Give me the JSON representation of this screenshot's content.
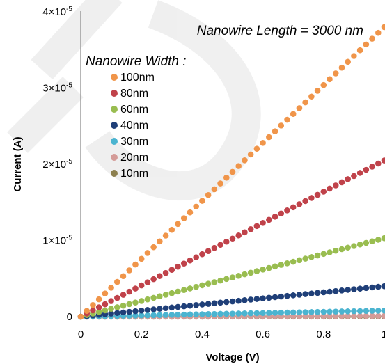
{
  "chart_data": {
    "type": "scatter",
    "title": "",
    "annotation": "Nanowire Length = 3000 nm",
    "legend_title": "Nanowire Width :",
    "legend_position": "top-left",
    "xlabel": "Voltage (V)",
    "ylabel": "Current (A)",
    "xlim": [
      0,
      1
    ],
    "ylim": [
      0,
      4e-05
    ],
    "x_ticks": [
      0,
      0.2,
      0.4,
      0.6,
      0.8,
      1
    ],
    "x_tick_labels": [
      "0",
      "0.2",
      "0.4",
      "0.6",
      "0.8",
      "1"
    ],
    "y_ticks": [
      0,
      1e-05,
      2e-05,
      3e-05,
      4e-05
    ],
    "y_tick_labels": [
      {
        "mantissa": "0",
        "exponent": ""
      },
      {
        "mantissa": "1×10",
        "exponent": "-5"
      },
      {
        "mantissa": "2×10",
        "exponent": "-5"
      },
      {
        "mantissa": "3×10",
        "exponent": "-5"
      },
      {
        "mantissa": "4×10",
        "exponent": "-5"
      }
    ],
    "grid": false,
    "x": [
      0,
      0.02,
      0.04,
      0.06,
      0.08,
      0.1,
      0.12,
      0.14,
      0.16,
      0.18,
      0.2,
      0.22,
      0.24,
      0.26,
      0.28,
      0.3,
      0.32,
      0.34,
      0.36,
      0.38,
      0.4,
      0.42,
      0.44,
      0.46,
      0.48,
      0.5,
      0.52,
      0.54,
      0.56,
      0.58,
      0.6,
      0.62,
      0.64,
      0.66,
      0.68,
      0.7,
      0.72,
      0.74,
      0.76,
      0.78,
      0.8,
      0.82,
      0.84,
      0.86,
      0.88,
      0.9,
      0.92,
      0.94,
      0.96,
      0.98,
      1
    ],
    "series": [
      {
        "name": "100nm",
        "color": "#f0954a",
        "values": [
          0,
          7.6e-07,
          1.52e-06,
          2.28e-06,
          3.04e-06,
          3.8e-06,
          4.56e-06,
          5.32e-06,
          6.08e-06,
          6.84e-06,
          7.6e-06,
          8.36e-06,
          9.12e-06,
          9.88e-06,
          1.064e-05,
          1.14e-05,
          1.216e-05,
          1.292e-05,
          1.368e-05,
          1.444e-05,
          1.52e-05,
          1.596e-05,
          1.672e-05,
          1.748e-05,
          1.824e-05,
          1.9e-05,
          1.976e-05,
          2.052e-05,
          2.128e-05,
          2.204e-05,
          2.28e-05,
          2.356e-05,
          2.432e-05,
          2.508e-05,
          2.584e-05,
          2.66e-05,
          2.736e-05,
          2.812e-05,
          2.888e-05,
          2.964e-05,
          3.04e-05,
          3.116e-05,
          3.192e-05,
          3.268e-05,
          3.344e-05,
          3.42e-05,
          3.496e-05,
          3.572e-05,
          3.648e-05,
          3.724e-05,
          3.8e-05
        ]
      },
      {
        "name": "80nm",
        "color": "#c0424a",
        "values": [
          0,
          4.1e-07,
          8.2e-07,
          1.23e-06,
          1.64e-06,
          2.05e-06,
          2.46e-06,
          2.87e-06,
          3.28e-06,
          3.69e-06,
          4.1e-06,
          4.51e-06,
          4.92e-06,
          5.33e-06,
          5.74e-06,
          6.15e-06,
          6.56e-06,
          6.97e-06,
          7.38e-06,
          7.79e-06,
          8.2e-06,
          8.61e-06,
          9.02e-06,
          9.43e-06,
          9.84e-06,
          1.025e-05,
          1.066e-05,
          1.107e-05,
          1.148e-05,
          1.189e-05,
          1.23e-05,
          1.271e-05,
          1.312e-05,
          1.353e-05,
          1.394e-05,
          1.435e-05,
          1.476e-05,
          1.517e-05,
          1.558e-05,
          1.599e-05,
          1.64e-05,
          1.681e-05,
          1.722e-05,
          1.763e-05,
          1.804e-05,
          1.845e-05,
          1.886e-05,
          1.927e-05,
          1.968e-05,
          2.009e-05,
          2.05e-05
        ]
      },
      {
        "name": "60nm",
        "color": "#99bd50",
        "values": [
          0,
          2.06e-07,
          4.12e-07,
          6.18e-07,
          8.24e-07,
          1.03e-06,
          1.236e-06,
          1.442e-06,
          1.648e-06,
          1.854e-06,
          2.06e-06,
          2.266e-06,
          2.472e-06,
          2.678e-06,
          2.884e-06,
          3.09e-06,
          3.296e-06,
          3.502e-06,
          3.708e-06,
          3.914e-06,
          4.12e-06,
          4.326e-06,
          4.532e-06,
          4.738e-06,
          4.944e-06,
          5.15e-06,
          5.356e-06,
          5.562e-06,
          5.768e-06,
          5.974e-06,
          6.18e-06,
          6.386e-06,
          6.592e-06,
          6.798e-06,
          7.004e-06,
          7.21e-06,
          7.416e-06,
          7.622e-06,
          7.828e-06,
          8.034e-06,
          8.24e-06,
          8.446e-06,
          8.652e-06,
          8.858e-06,
          9.064e-06,
          9.27e-06,
          9.476e-06,
          9.682e-06,
          9.888e-06,
          1.0094e-05,
          1.03e-05
        ]
      },
      {
        "name": "40nm",
        "color": "#1f3f78",
        "values": [
          0,
          8e-08,
          1.6e-07,
          2.4e-07,
          3.2e-07,
          4e-07,
          4.8e-07,
          5.6e-07,
          6.4e-07,
          7.2e-07,
          8e-07,
          8.8e-07,
          9.6e-07,
          1.04e-06,
          1.12e-06,
          1.2e-06,
          1.28e-06,
          1.36e-06,
          1.44e-06,
          1.52e-06,
          1.6e-06,
          1.68e-06,
          1.76e-06,
          1.84e-06,
          1.92e-06,
          2e-06,
          2.08e-06,
          2.16e-06,
          2.24e-06,
          2.32e-06,
          2.4e-06,
          2.48e-06,
          2.56e-06,
          2.64e-06,
          2.72e-06,
          2.8e-06,
          2.88e-06,
          2.96e-06,
          3.04e-06,
          3.12e-06,
          3.2e-06,
          3.28e-06,
          3.36e-06,
          3.44e-06,
          3.52e-06,
          3.6e-06,
          3.68e-06,
          3.76e-06,
          3.84e-06,
          3.92e-06,
          4e-06
        ]
      },
      {
        "name": "30nm",
        "color": "#4bb4d0",
        "values": [
          0,
          1.6e-08,
          3.2e-08,
          4.8e-08,
          6.4e-08,
          8e-08,
          9.6e-08,
          1.12e-07,
          1.28e-07,
          1.44e-07,
          1.6e-07,
          1.76e-07,
          1.92e-07,
          2.08e-07,
          2.24e-07,
          2.4e-07,
          2.56e-07,
          2.72e-07,
          2.88e-07,
          3.04e-07,
          3.2e-07,
          3.36e-07,
          3.52e-07,
          3.68e-07,
          3.84e-07,
          4e-07,
          4.16e-07,
          4.32e-07,
          4.48e-07,
          4.64e-07,
          4.8e-07,
          4.96e-07,
          5.12e-07,
          5.28e-07,
          5.44e-07,
          5.6e-07,
          5.76e-07,
          5.92e-07,
          6.08e-07,
          6.24e-07,
          6.4e-07,
          6.56e-07,
          6.72e-07,
          6.88e-07,
          7.04e-07,
          7.2e-07,
          7.36e-07,
          7.52e-07,
          7.68e-07,
          7.84e-07,
          8e-07
        ]
      },
      {
        "name": "20nm",
        "color": "#d49b98",
        "values": [
          0,
          2e-09,
          4e-09,
          6e-09,
          8e-09,
          1e-08,
          1.2e-08,
          1.4e-08,
          1.6e-08,
          1.8e-08,
          2e-08,
          2.2e-08,
          2.4e-08,
          2.6e-08,
          2.8e-08,
          3e-08,
          3.2e-08,
          3.4e-08,
          3.6e-08,
          3.8e-08,
          4e-08,
          4.2e-08,
          4.4e-08,
          4.6e-08,
          4.8e-08,
          5e-08,
          5.2e-08,
          5.4e-08,
          5.6e-08,
          5.8e-08,
          6e-08,
          6.2e-08,
          6.4e-08,
          6.6e-08,
          6.8e-08,
          7e-08,
          7.2e-08,
          7.4e-08,
          7.6e-08,
          7.8e-08,
          8e-08,
          8.2e-08,
          8.4e-08,
          8.6e-08,
          8.8e-08,
          9e-08,
          9.2e-08,
          9.4e-08,
          9.6e-08,
          9.8e-08,
          1e-07
        ]
      },
      {
        "name": "10nm",
        "color": "#8c7f4e",
        "values": [
          0,
          0,
          1e-09,
          1e-09,
          2e-09,
          2e-09,
          3e-09,
          3e-09,
          4e-09,
          4e-09,
          5e-09,
          5e-09,
          6e-09,
          6e-09,
          7e-09,
          7e-09,
          8e-09,
          8e-09,
          9e-09,
          9e-09,
          1e-08,
          1e-08,
          1.1e-08,
          1.1e-08,
          1.2e-08,
          1.2e-08,
          1.3e-08,
          1.3e-08,
          1.4e-08,
          1.4e-08,
          1.5e-08,
          1.5e-08,
          1.6e-08,
          1.6e-08,
          1.7e-08,
          1.7e-08,
          1.8e-08,
          1.8e-08,
          1.9e-08,
          1.9e-08,
          2e-08,
          2e-08,
          2.1e-08,
          2.1e-08,
          2.2e-08,
          2.2e-08,
          2.3e-08,
          2.3e-08,
          2.4e-08,
          2.4e-08,
          2.5e-08
        ]
      }
    ]
  }
}
